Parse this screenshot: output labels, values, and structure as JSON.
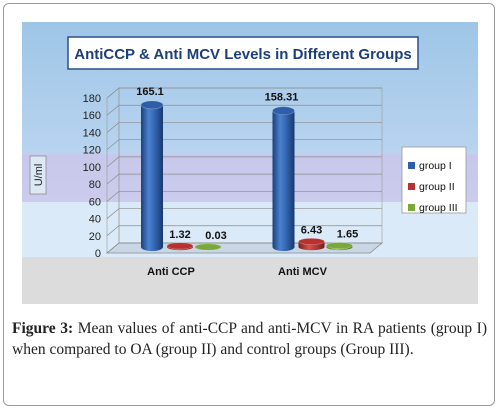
{
  "chart_data": {
    "type": "bar",
    "title": "AntiCCP & Anti MCV Levels in Different Groups",
    "ylabel": "U/ml",
    "xlabel": "",
    "categories": [
      "Anti CCP",
      "Anti MCV"
    ],
    "series": [
      {
        "name": "group I",
        "values": [
          165.1,
          158.31
        ],
        "labels": [
          "165.1",
          "158.31"
        ],
        "color": "#2e5ea8"
      },
      {
        "name": "group II",
        "values": [
          1.32,
          6.43
        ],
        "labels": [
          "1.32",
          "6.43"
        ],
        "color": "#b8312f"
      },
      {
        "name": "group III",
        "values": [
          0.03,
          1.65
        ],
        "labels": [
          "0.03",
          "1.65"
        ],
        "color": "#7aa83a"
      }
    ],
    "ylim": [
      0,
      180
    ],
    "yticks": [
      0,
      20,
      40,
      60,
      80,
      100,
      120,
      140,
      160,
      180
    ],
    "grid": true,
    "legend_position": "right",
    "style": "3d-cylinder"
  },
  "caption": {
    "label": "Figure 3:",
    "text": " Mean values of anti-CCP and anti-MCV in RA patients (group I) when compared to OA (group II) and control groups (Group III)."
  }
}
